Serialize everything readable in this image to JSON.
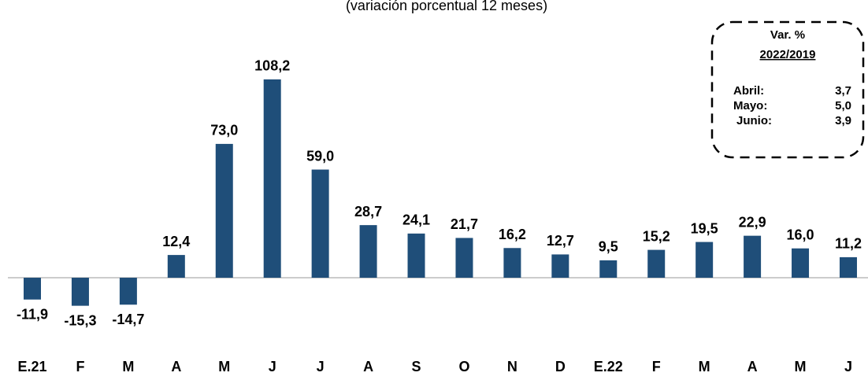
{
  "chart_data": {
    "type": "bar",
    "subtitle": "(variación porcentual 12 meses)",
    "categories": [
      "E.21",
      "F",
      "M",
      "A",
      "M",
      "J",
      "J",
      "A",
      "S",
      "O",
      "N",
      "D",
      "E.22",
      "F",
      "M",
      "A",
      "M",
      "J"
    ],
    "values": [
      -11.9,
      -15.3,
      -14.7,
      12.4,
      73.0,
      108.2,
      59.0,
      28.7,
      24.1,
      21.7,
      16.2,
      12.7,
      9.5,
      15.2,
      19.5,
      22.9,
      16.0,
      11.2
    ],
    "value_labels": [
      "-11,9",
      "-15,3",
      "-14,7",
      "12,4",
      "73,0",
      "108,2",
      "59,0",
      "28,7",
      "24,1",
      "21,7",
      "16,2",
      "12,7",
      "9,5",
      "15,2",
      "19,5",
      "22,9",
      "16,0",
      "11,2"
    ],
    "color": "#1f4e79",
    "annotation": {
      "title": "Var. %",
      "subtitle": "2022/2019",
      "rows": [
        {
          "label": "Abril:",
          "value": "3,7"
        },
        {
          "label": "Mayo:",
          "value": "5,0"
        },
        {
          "label": "Junio:",
          "value": "3,9"
        }
      ]
    }
  }
}
